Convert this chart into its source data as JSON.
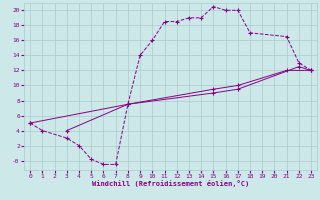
{
  "xlabel": "Windchill (Refroidissement éolien,°C)",
  "bg_color": "#cce8e8",
  "grid_color": "#aacccc",
  "line_color": "#880088",
  "xlim": [
    -0.5,
    23.5
  ],
  "ylim": [
    -1.2,
    21
  ],
  "xticks": [
    0,
    1,
    2,
    3,
    4,
    5,
    6,
    7,
    8,
    9,
    10,
    11,
    12,
    13,
    14,
    15,
    16,
    17,
    18,
    19,
    20,
    21,
    22,
    23
  ],
  "yticks": [
    0,
    2,
    4,
    6,
    8,
    10,
    12,
    14,
    16,
    18,
    20
  ],
  "ytick_labels": [
    "0",
    "2",
    "4",
    "6",
    "8",
    "10",
    "12",
    "14",
    "16",
    "18",
    "20"
  ],
  "ytick_label_neg": "-0",
  "line1_x": [
    0,
    1,
    3,
    4,
    5,
    6,
    7,
    8,
    9,
    10,
    11,
    12,
    13,
    14,
    15,
    16,
    17,
    18,
    21,
    22,
    23
  ],
  "line1_y": [
    5,
    4,
    3,
    2,
    0.2,
    -0.5,
    -0.5,
    7.5,
    14,
    16,
    18.5,
    18.5,
    19,
    19,
    20.5,
    20,
    20,
    17,
    16.5,
    13,
    12
  ],
  "line2_x": [
    0,
    8,
    15,
    17,
    21,
    23
  ],
  "line2_y": [
    5,
    7.5,
    9.5,
    10,
    12,
    12
  ],
  "line3_x": [
    3,
    8,
    15,
    17,
    22,
    23
  ],
  "line3_y": [
    4,
    7.5,
    9,
    9.5,
    12.5,
    12
  ]
}
